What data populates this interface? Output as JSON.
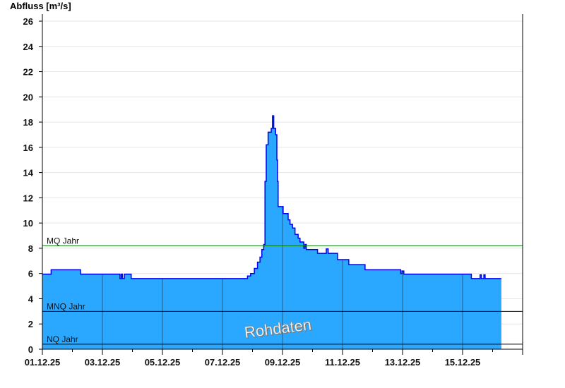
{
  "chart_data": {
    "type": "area",
    "step": "after",
    "ylabel": "Abfluss [m³/s]",
    "ylim": [
      0,
      26
    ],
    "yticks": [
      0,
      2,
      4,
      6,
      8,
      10,
      12,
      14,
      16,
      18,
      20,
      22,
      24,
      26
    ],
    "xlim": [
      "2025-12-01T00:00",
      "2025-12-17T00:00"
    ],
    "xtick_labels": [
      "01.12.25",
      "03.12.25",
      "05.12.25",
      "07.12.25",
      "09.12.25",
      "11.12.25",
      "13.12.25",
      "15.12.25"
    ],
    "xtick_dates": [
      "2025-12-01",
      "2025-12-03",
      "2025-12-05",
      "2025-12-07",
      "2025-12-09",
      "2025-12-11",
      "2025-12-13",
      "2025-12-15"
    ],
    "grid": true,
    "watermark": "Rohdaten",
    "colors": {
      "fill": "#2aa8ff",
      "line": "#0000ee",
      "mq": "#008000",
      "mnq": "#000000",
      "nq": "#000000"
    },
    "reference_lines": [
      {
        "name": "MQ Jahr",
        "value": 8.2,
        "color": "#008000"
      },
      {
        "name": "MNQ Jahr",
        "value": 3.0,
        "color": "#000000"
      },
      {
        "name": "NQ Jahr",
        "value": 0.4,
        "color": "#000000"
      }
    ],
    "series": [
      {
        "points": [
          [
            "2025-12-01T00:00",
            5.95
          ],
          [
            "2025-12-01T07:00",
            6.3
          ],
          [
            "2025-12-02T06:30",
            5.95
          ],
          [
            "2025-12-03T14:00",
            5.6
          ],
          [
            "2025-12-03T15:00",
            5.95
          ],
          [
            "2025-12-03T16:00",
            5.6
          ],
          [
            "2025-12-03T17:30",
            5.95
          ],
          [
            "2025-12-03T22:00",
            5.95
          ],
          [
            "2025-12-03T23:00",
            5.6
          ],
          [
            "2025-12-07T20:00",
            5.8
          ],
          [
            "2025-12-07T22:30",
            6.0
          ],
          [
            "2025-12-08T01:30",
            6.4
          ],
          [
            "2025-12-08T04:00",
            6.9
          ],
          [
            "2025-12-08T06:00",
            7.3
          ],
          [
            "2025-12-08T07:30",
            7.9
          ],
          [
            "2025-12-08T09:00",
            8.3
          ],
          [
            "2025-12-08T10:00",
            13.3
          ],
          [
            "2025-12-08T11:00",
            16.2
          ],
          [
            "2025-12-08T12:30",
            17.2
          ],
          [
            "2025-12-08T15:00",
            17.5
          ],
          [
            "2025-12-08T16:00",
            18.5
          ],
          [
            "2025-12-08T17:00",
            17.5
          ],
          [
            "2025-12-08T18:30",
            17.0
          ],
          [
            "2025-12-08T19:30",
            15.0
          ],
          [
            "2025-12-08T20:00",
            13.3
          ],
          [
            "2025-12-08T20:30",
            11.3
          ],
          [
            "2025-12-09T00:30",
            10.75
          ],
          [
            "2025-12-09T04:30",
            10.25
          ],
          [
            "2025-12-09T06:00",
            9.9
          ],
          [
            "2025-12-09T08:00",
            9.6
          ],
          [
            "2025-12-09T10:00",
            9.1
          ],
          [
            "2025-12-09T12:30",
            8.8
          ],
          [
            "2025-12-09T14:00",
            8.5
          ],
          [
            "2025-12-09T17:00",
            8.0
          ],
          [
            "2025-12-09T18:00",
            8.3
          ],
          [
            "2025-12-09T19:00",
            7.9
          ],
          [
            "2025-12-10T04:00",
            7.6
          ],
          [
            "2025-12-10T11:00",
            7.95
          ],
          [
            "2025-12-10T12:30",
            7.6
          ],
          [
            "2025-12-10T20:00",
            7.1
          ],
          [
            "2025-12-11T05:00",
            6.7
          ],
          [
            "2025-12-11T18:00",
            6.3
          ],
          [
            "2025-12-12T22:30",
            6.0
          ],
          [
            "2025-12-12T23:30",
            6.2
          ],
          [
            "2025-12-13T01:00",
            5.95
          ],
          [
            "2025-12-15T07:00",
            5.6
          ],
          [
            "2025-12-15T14:00",
            5.9
          ],
          [
            "2025-12-15T15:00",
            5.6
          ],
          [
            "2025-12-15T17:00",
            5.9
          ],
          [
            "2025-12-15T18:00",
            5.6
          ],
          [
            "2025-12-16T07:00",
            5.6
          ]
        ]
      }
    ]
  }
}
